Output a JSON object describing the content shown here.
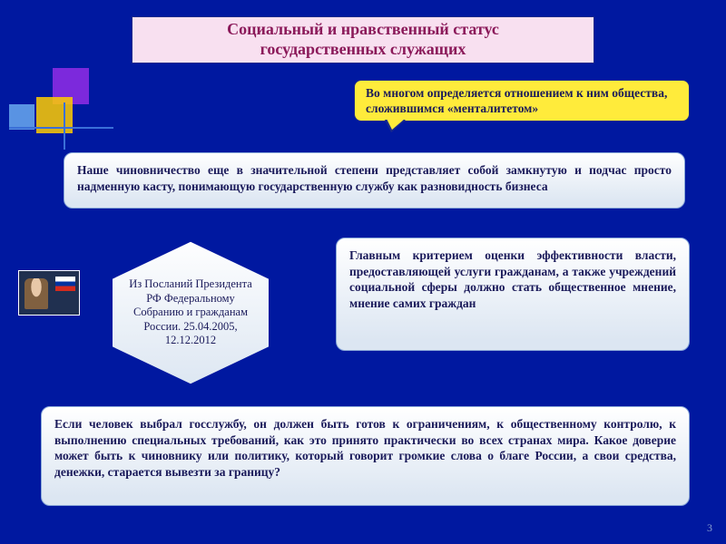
{
  "title": {
    "line1": "Социальный и нравственный статус",
    "line2": "государственных служащих"
  },
  "callout": "Во многом определяется отношением к ним общества, сложившимся «менталитетом»",
  "box1": "Наше чиновничество еще в значительной степени представляет собой замкнутую и подчас просто надменную касту, понимающую государственную службу как разновидность бизнеса",
  "hex": "Из Посланий Президента РФ Федеральному Собранию и гражданам России. 25.04.2005, 12.12.2012",
  "box2": "Главным критерием оценки эффективности власти, предоставляющей услуги гражданам, а также учреждений социальной сферы должно стать общественное мнение, мнение самих граждан",
  "box3": "Если человек выбрал госслужбу, он должен быть готов к ограничениям, к общественному контролю, к выполнению специальных требований, как это принято практически во всех странах мира. Какое доверие может быть к чиновнику или политику, который говорит громкие слова о благе России, а свои средства, денежки, старается вывезти за границу?",
  "pageNumber": "3",
  "colors": {
    "bg": "#0018a0",
    "titleBg": "#f8e0f0",
    "titleText": "#8b1a5a",
    "calloutBg": "#ffeb3b",
    "boxText": "#1a1a5a",
    "boxBorder": "#8aa8d8",
    "decoPurple": "#8a2be2",
    "decoYellow": "#ffcc00",
    "decoBlue": "#7fc8ff"
  },
  "fonts": {
    "title_pt": 18,
    "body_pt": 13.5,
    "hex_pt": 12.5,
    "pgnum_pt": 12
  }
}
